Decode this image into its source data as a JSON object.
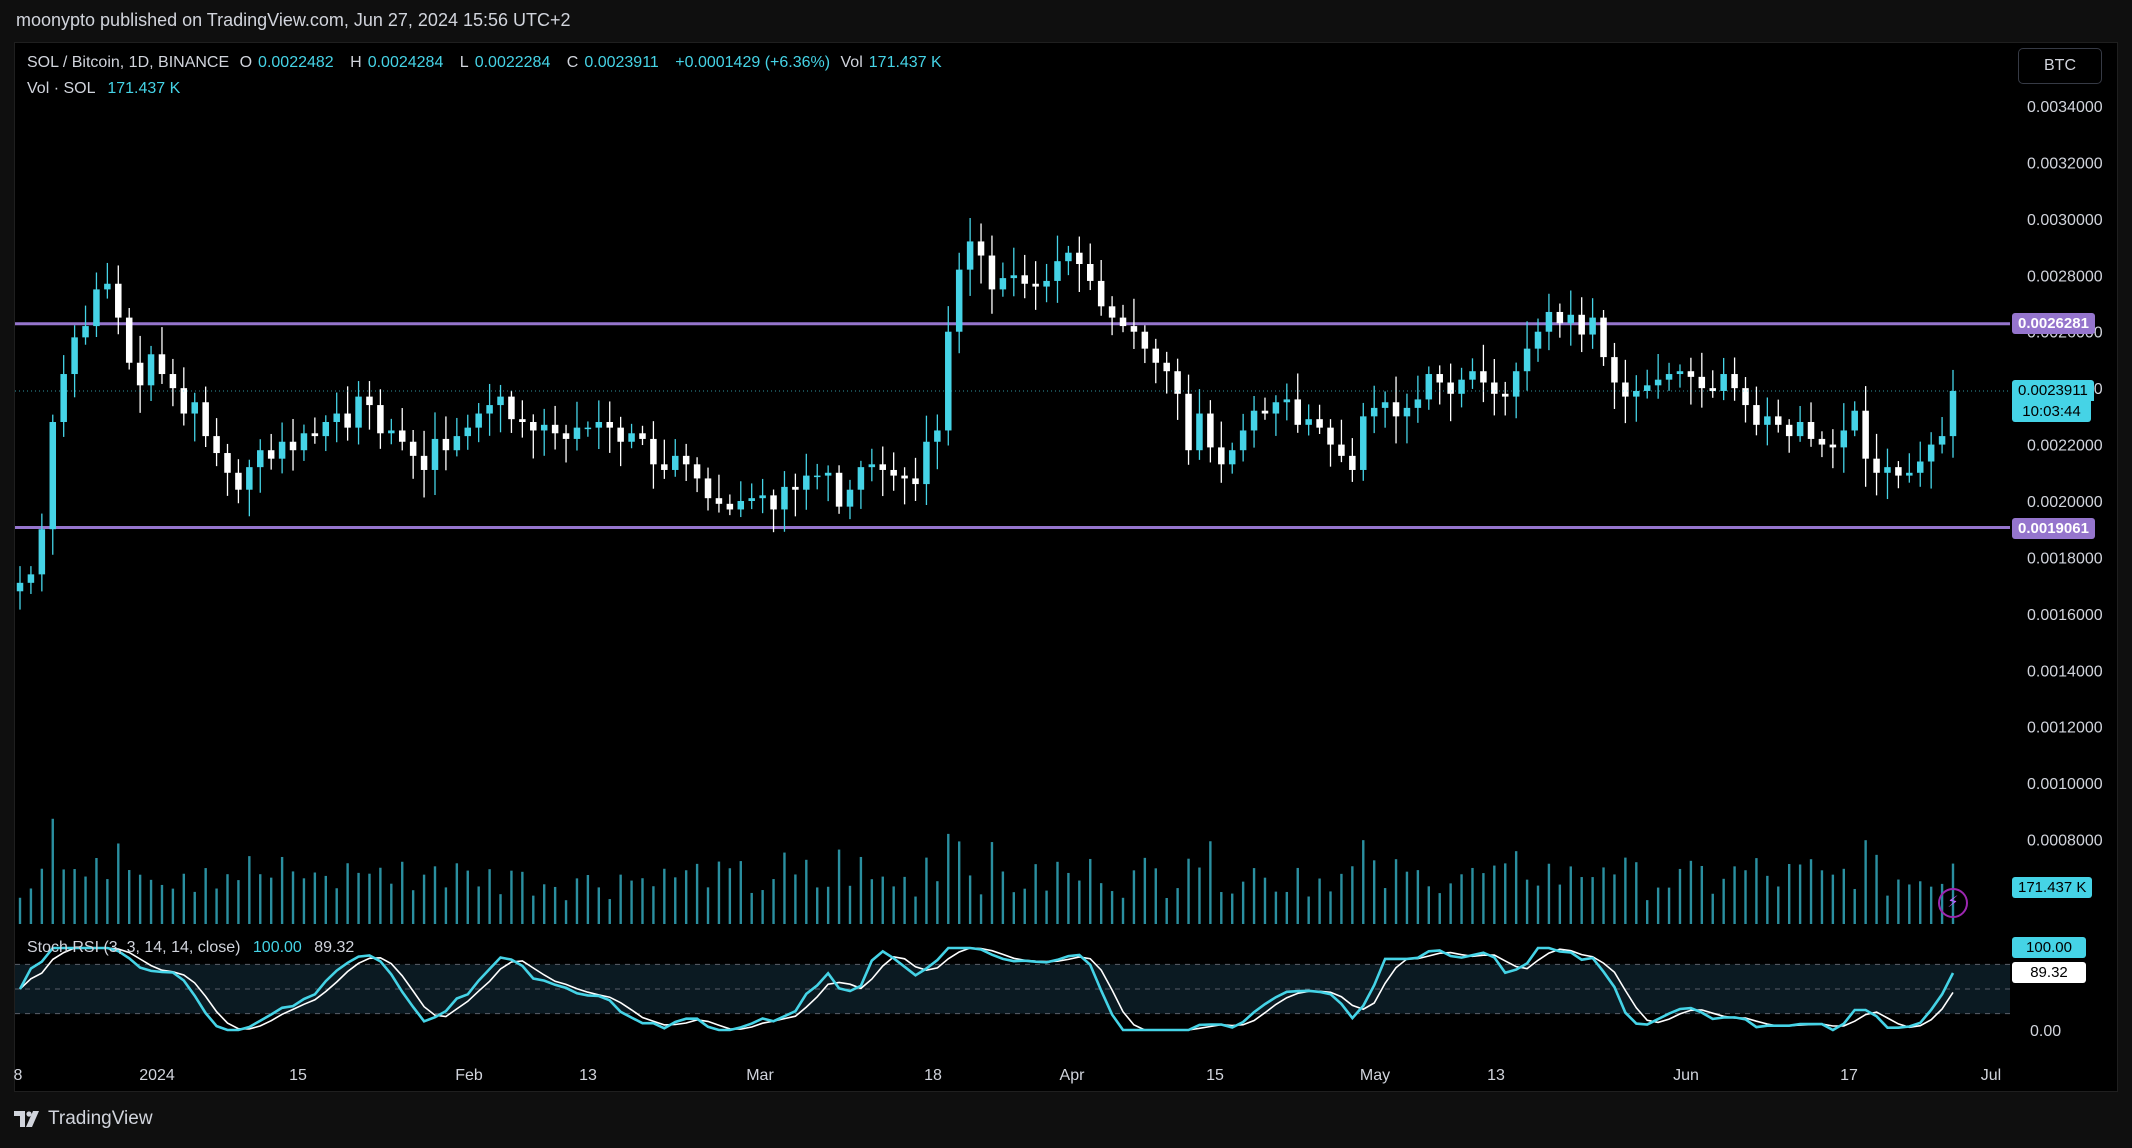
{
  "header": {
    "publisher": "moonypto published on TradingView.com, Jun 27, 2024 15:56 UTC+2"
  },
  "legend": {
    "symbol": "SOL / Bitcoin, 1D, BINANCE",
    "o_label": "O",
    "o": "0.0022482",
    "h_label": "H",
    "h": "0.0024284",
    "l_label": "L",
    "l": "0.0022284",
    "c_label": "C",
    "c": "0.0023911",
    "change": "+0.0001429 (+6.36%)",
    "vol_label": "Vol",
    "vol": "171.437 K",
    "vol_line_label": "Vol · SOL",
    "vol_line_value": "171.437 K"
  },
  "rsi_legend": {
    "label": "Stoch RSI (3, 3, 14, 14, close)",
    "k": "100.00",
    "d": "89.32"
  },
  "currency_button": "BTC",
  "footer": {
    "brand": "TradingView"
  },
  "badges": {
    "upper_level": "0.0026281",
    "lower_level": "0.0019061",
    "last_price": "0.0023911",
    "countdown": "10:03:44",
    "volume": "171.437 K",
    "rsi_k": "100.00",
    "rsi_d": "89.32"
  },
  "colors": {
    "up": "#45d3e6",
    "down": "#ffffff",
    "level": "#9575cd",
    "volume": "#2a8fa0",
    "rsi_k": "#45d3e6",
    "rsi_d": "#ffffff",
    "background": "#000000"
  },
  "chart_data": {
    "type": "candlestick",
    "price_axis_ticks": [
      "0.0034000",
      "0.0032000",
      "0.0030000",
      "0.0028000",
      "0.0026000",
      "0.0024000",
      "0.0022000",
      "0.0020000",
      "0.0018000",
      "0.0016000",
      "0.0014000",
      "0.0012000",
      "0.0010000",
      "0.0008000"
    ],
    "rsi_axis_ticks": [
      "0.00"
    ],
    "time_axis_labels": [
      "8",
      "2024",
      "15",
      "Feb",
      "13",
      "Mar",
      "18",
      "Apr",
      "15",
      "May",
      "13",
      "Jun",
      "17",
      "Jul"
    ],
    "horizontal_levels": [
      0.0026281,
      0.0019061
    ],
    "closes": [
      0.00171,
      0.00174,
      0.0019,
      0.00228,
      0.00245,
      0.00258,
      0.00262,
      0.00275,
      0.00277,
      0.00265,
      0.00249,
      0.00241,
      0.00252,
      0.00245,
      0.0024,
      0.00231,
      0.00235,
      0.00223,
      0.00217,
      0.0021,
      0.00204,
      0.00212,
      0.00218,
      0.00215,
      0.00221,
      0.00218,
      0.00224,
      0.00223,
      0.00228,
      0.00231,
      0.00226,
      0.00237,
      0.00234,
      0.00224,
      0.00225,
      0.00221,
      0.00216,
      0.00211,
      0.00222,
      0.00218,
      0.00223,
      0.00226,
      0.00231,
      0.00234,
      0.00237,
      0.00229,
      0.00228,
      0.00225,
      0.00227,
      0.00224,
      0.00222,
      0.00226,
      0.00226,
      0.00228,
      0.00226,
      0.00221,
      0.00224,
      0.00222,
      0.00213,
      0.00211,
      0.00216,
      0.00213,
      0.00208,
      0.00201,
      0.00199,
      0.00197,
      0.002,
      0.00201,
      0.00202,
      0.00197,
      0.00205,
      0.00204,
      0.00209,
      0.00209,
      0.0021,
      0.00198,
      0.00204,
      0.00212,
      0.00213,
      0.00211,
      0.00209,
      0.00208,
      0.00206,
      0.00221,
      0.00225,
      0.0026,
      0.00282,
      0.00292,
      0.00287,
      0.00275,
      0.00279,
      0.0028,
      0.00277,
      0.00276,
      0.00278,
      0.00285,
      0.00288,
      0.00284,
      0.00278,
      0.00269,
      0.00265,
      0.00262,
      0.0026,
      0.00254,
      0.00249,
      0.00246,
      0.00238,
      0.00218,
      0.00231,
      0.00219,
      0.00213,
      0.00218,
      0.00225,
      0.00232,
      0.00231,
      0.00235,
      0.00236,
      0.00227,
      0.00229,
      0.00226,
      0.0022,
      0.00216,
      0.00211,
      0.0023,
      0.00233,
      0.00235,
      0.0023,
      0.00233,
      0.00236,
      0.00245,
      0.00242,
      0.00238,
      0.00243,
      0.00246,
      0.00242,
      0.00238,
      0.00237,
      0.00246,
      0.00254,
      0.0026,
      0.00267,
      0.00263,
      0.00266,
      0.00259,
      0.00265,
      0.00251,
      0.00242,
      0.00237,
      0.00239,
      0.00241,
      0.00243,
      0.00245,
      0.00246,
      0.00244,
      0.0024,
      0.00239,
      0.00245,
      0.0024,
      0.00234,
      0.00227,
      0.0023,
      0.00227,
      0.00223,
      0.00228,
      0.00222,
      0.0022,
      0.00219,
      0.00225,
      0.00232,
      0.00215,
      0.0021,
      0.00212,
      0.00209,
      0.0021,
      0.00214,
      0.0022,
      0.00223,
      0.00239
    ]
  }
}
